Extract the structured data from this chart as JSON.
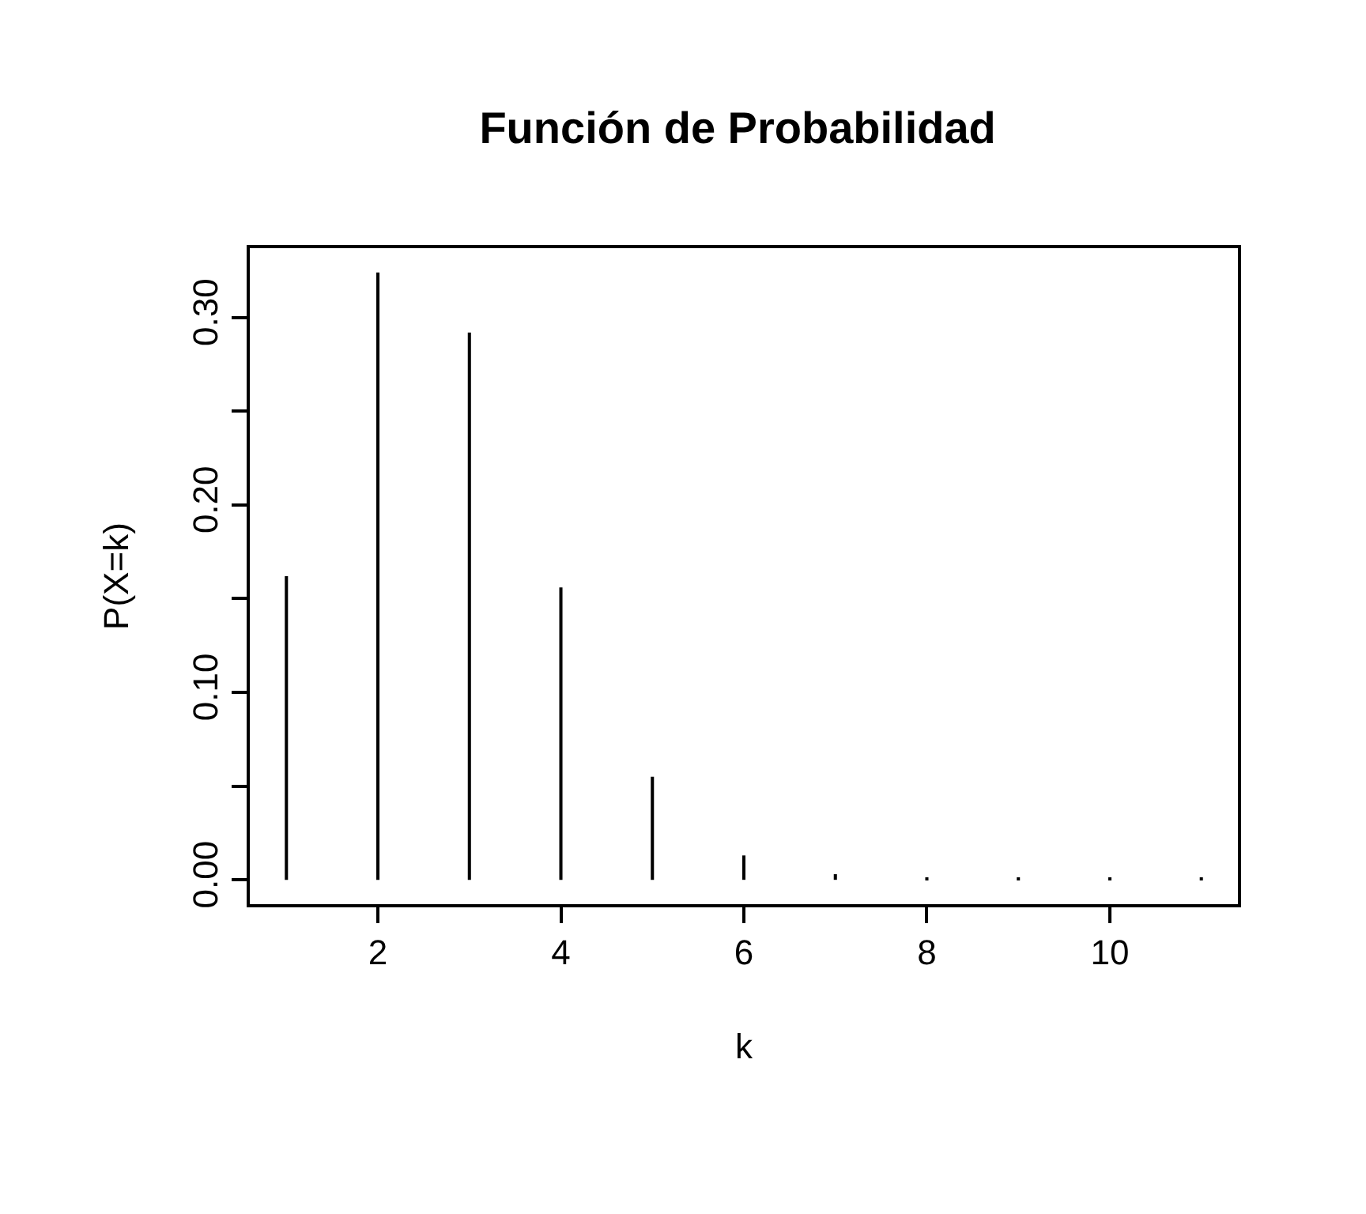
{
  "chart_data": {
    "type": "bar",
    "title": "Función de Probabilidad",
    "xlabel": "k",
    "ylabel": "P(X=k)",
    "x": [
      1,
      2,
      3,
      4,
      5,
      6,
      7,
      8,
      9,
      10,
      11
    ],
    "values": [
      0.162,
      0.324,
      0.292,
      0.156,
      0.055,
      0.013,
      0.003,
      0.001,
      0.001,
      0.001,
      0.001
    ],
    "color": "#000000",
    "xlim": [
      0.6,
      11.4
    ],
    "xticks": [
      2,
      4,
      6,
      8,
      10
    ],
    "ylim": [
      -0.013,
      0.337
    ],
    "yticks": [
      {
        "value": 0.0,
        "label": "0.00"
      },
      {
        "value": 0.05,
        "label": null
      },
      {
        "value": 0.1,
        "label": "0.10"
      },
      {
        "value": 0.15,
        "label": null
      },
      {
        "value": 0.2,
        "label": "0.20"
      },
      {
        "value": 0.25,
        "label": null
      },
      {
        "value": 0.3,
        "label": "0.30"
      }
    ],
    "grid": false
  }
}
